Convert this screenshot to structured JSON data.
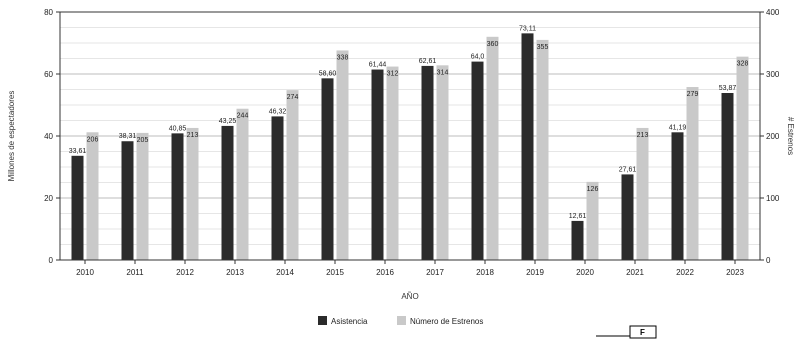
{
  "chart_data": {
    "type": "bar",
    "categories": [
      "2010",
      "2011",
      "2012",
      "2013",
      "2014",
      "2015",
      "2016",
      "2017",
      "2018",
      "2019",
      "2020",
      "2021",
      "2022",
      "2023"
    ],
    "series": [
      {
        "name": "Asistencia",
        "axis": "left",
        "color": "#2b2b2b",
        "values": [
          33.61,
          38.31,
          40.85,
          43.25,
          46.32,
          58.6,
          61.44,
          62.61,
          64.0,
          73.11,
          12.61,
          27.61,
          41.19,
          53.87
        ],
        "labels": [
          "33,61",
          "38,31",
          "40,85",
          "43,25",
          "46,32",
          "58,60",
          "61,44",
          "62,61",
          "64,0",
          "73,11",
          "12,61",
          "27,61",
          "41,19",
          "53,87"
        ]
      },
      {
        "name": "Número de Estrenos",
        "axis": "right",
        "color": "#c9c9c9",
        "values": [
          206,
          205,
          213,
          244,
          274,
          338,
          312,
          314,
          360,
          355,
          126,
          213,
          279,
          328
        ],
        "labels": [
          "206",
          "205",
          "213",
          "244",
          "274",
          "338",
          "312",
          "314",
          "360",
          "355",
          "126",
          "213",
          "279",
          "328"
        ]
      }
    ],
    "xlabel": "AÑO",
    "ylabel": "Millones de espectadores",
    "y2label": "# Estrenos",
    "ylim": [
      0,
      80
    ],
    "y2lim": [
      0,
      400
    ],
    "yticks": [
      "0",
      "20",
      "40",
      "60",
      "80"
    ],
    "y2ticks": [
      "0",
      "100",
      "200",
      "300",
      "400"
    ],
    "grid": true,
    "legend": "bottom-center"
  },
  "corner_mark": "F"
}
